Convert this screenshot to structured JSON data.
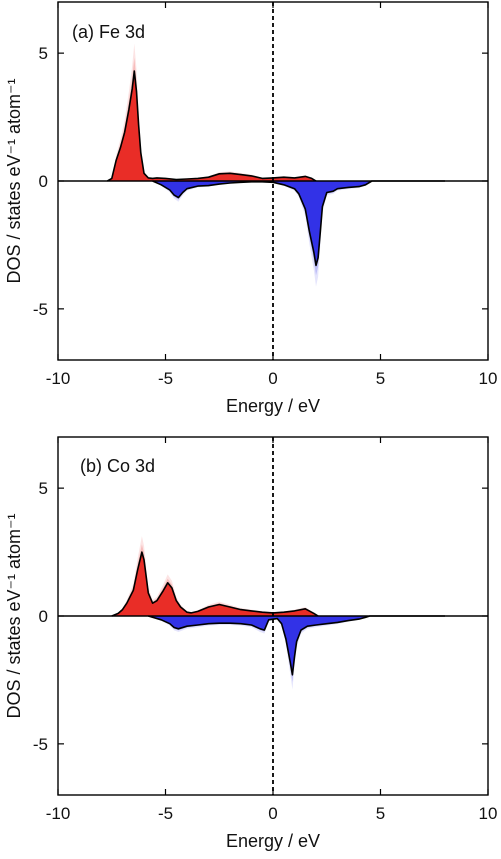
{
  "watermark": "",
  "chart_data": [
    {
      "type": "area",
      "panel_label": "(a) Fe 3d",
      "xlabel": "Energy / eV",
      "ylabel": "DOS / states eV⁻¹ atom⁻¹",
      "xlim": [
        -10,
        10
      ],
      "ylim": [
        -7,
        7
      ],
      "xticks": [
        -10,
        -5,
        0,
        5,
        10
      ],
      "xtick_labels": [
        "-10",
        "-5",
        "0",
        "5",
        "10"
      ],
      "yticks": [
        -5,
        0,
        5
      ],
      "ytick_labels": [
        "-5",
        "0",
        "5"
      ],
      "fermi_level": 0,
      "colors": {
        "up": "#e8251f",
        "down": "#2a2ae6",
        "curve": "#000000"
      },
      "series": [
        {
          "spin": "up",
          "x": [
            -7.7,
            -7.5,
            -7.3,
            -7.1,
            -6.9,
            -6.7,
            -6.55,
            -6.45,
            -6.35,
            -6.25,
            -6.15,
            -6.0,
            -5.8,
            -5.6,
            -5.4,
            -5.0,
            -4.5,
            -4.0,
            -3.5,
            -3.0,
            -2.5,
            -2.0,
            -1.5,
            -1.0,
            -0.5,
            0.0,
            0.5,
            1.0,
            1.5,
            1.8,
            2.0
          ],
          "y": [
            0,
            0.1,
            0.8,
            1.3,
            1.9,
            2.8,
            3.6,
            4.3,
            3.5,
            2.2,
            1.1,
            0.3,
            0.12,
            0.1,
            0.12,
            0.1,
            0.06,
            0.08,
            0.1,
            0.15,
            0.28,
            0.3,
            0.25,
            0.2,
            0.1,
            0.12,
            0.15,
            0.12,
            0.18,
            0.1,
            0
          ]
        },
        {
          "spin": "down",
          "x": [
            -5.6,
            -5.2,
            -4.8,
            -4.6,
            -4.4,
            -4.2,
            -4.0,
            -3.5,
            -3.0,
            -2.5,
            -2.0,
            -1.5,
            -1.0,
            -0.5,
            0.0,
            0.5,
            1.0,
            1.2,
            1.5,
            1.7,
            1.9,
            2.0,
            2.1,
            2.2,
            2.3,
            2.5,
            2.8,
            3.0,
            3.5,
            4.0,
            4.3,
            4.6,
            7.0,
            8.0
          ],
          "y": [
            0,
            -0.15,
            -0.35,
            -0.55,
            -0.65,
            -0.45,
            -0.3,
            -0.2,
            -0.18,
            -0.12,
            -0.08,
            -0.05,
            -0.03,
            -0.03,
            -0.05,
            -0.15,
            -0.3,
            -0.5,
            -1.1,
            -2.0,
            -2.8,
            -3.3,
            -3.0,
            -2.0,
            -1.0,
            -0.45,
            -0.4,
            -0.3,
            -0.25,
            -0.22,
            -0.15,
            0,
            0,
            0
          ]
        }
      ]
    },
    {
      "type": "area",
      "panel_label": "(b) Co 3d",
      "xlabel": "Energy / eV",
      "ylabel": "DOS / states eV⁻¹ atom⁻¹",
      "xlim": [
        -10,
        10
      ],
      "ylim": [
        -7,
        7
      ],
      "xticks": [
        -10,
        -5,
        0,
        5,
        10
      ],
      "xtick_labels": [
        "-10",
        "-5",
        "0",
        "5",
        "10"
      ],
      "yticks": [
        -5,
        0,
        5
      ],
      "ytick_labels": [
        "-5",
        "0",
        "5"
      ],
      "fermi_level": 0,
      "colors": {
        "up": "#e8251f",
        "down": "#2a2ae6",
        "curve": "#000000"
      },
      "series": [
        {
          "spin": "up",
          "x": [
            -7.5,
            -7.2,
            -7.0,
            -6.8,
            -6.5,
            -6.3,
            -6.1,
            -6.0,
            -5.8,
            -5.6,
            -5.4,
            -5.1,
            -4.9,
            -4.7,
            -4.5,
            -4.3,
            -4.0,
            -3.8,
            -3.5,
            -3.0,
            -2.5,
            -2.0,
            -1.5,
            -1.0,
            -0.5,
            0.0,
            0.5,
            1.0,
            1.5,
            1.9,
            2.1
          ],
          "y": [
            0,
            0.1,
            0.25,
            0.5,
            1.0,
            1.8,
            2.5,
            2.2,
            0.9,
            0.5,
            0.6,
            1.0,
            1.3,
            1.1,
            0.6,
            0.35,
            0.15,
            0.12,
            0.18,
            0.35,
            0.45,
            0.35,
            0.25,
            0.2,
            0.15,
            0.12,
            0.15,
            0.2,
            0.28,
            0.1,
            0
          ]
        },
        {
          "spin": "down",
          "x": [
            -5.8,
            -5.2,
            -4.8,
            -4.6,
            -4.4,
            -4.0,
            -3.5,
            -3.0,
            -2.5,
            -2.0,
            -1.5,
            -1.0,
            -0.6,
            -0.4,
            -0.2,
            0.2,
            0.4,
            0.6,
            0.8,
            0.9,
            1.0,
            1.1,
            1.3,
            1.6,
            2.0,
            2.5,
            3.0,
            3.5,
            4.0,
            4.3,
            4.5,
            7.0,
            8.0
          ],
          "y": [
            0,
            -0.15,
            -0.3,
            -0.45,
            -0.5,
            -0.4,
            -0.35,
            -0.3,
            -0.28,
            -0.28,
            -0.3,
            -0.35,
            -0.5,
            -0.55,
            -0.15,
            -0.1,
            -0.3,
            -0.9,
            -1.8,
            -2.3,
            -1.6,
            -1.0,
            -0.55,
            -0.4,
            -0.35,
            -0.3,
            -0.25,
            -0.18,
            -0.12,
            -0.05,
            0,
            0,
            0
          ]
        }
      ]
    }
  ]
}
